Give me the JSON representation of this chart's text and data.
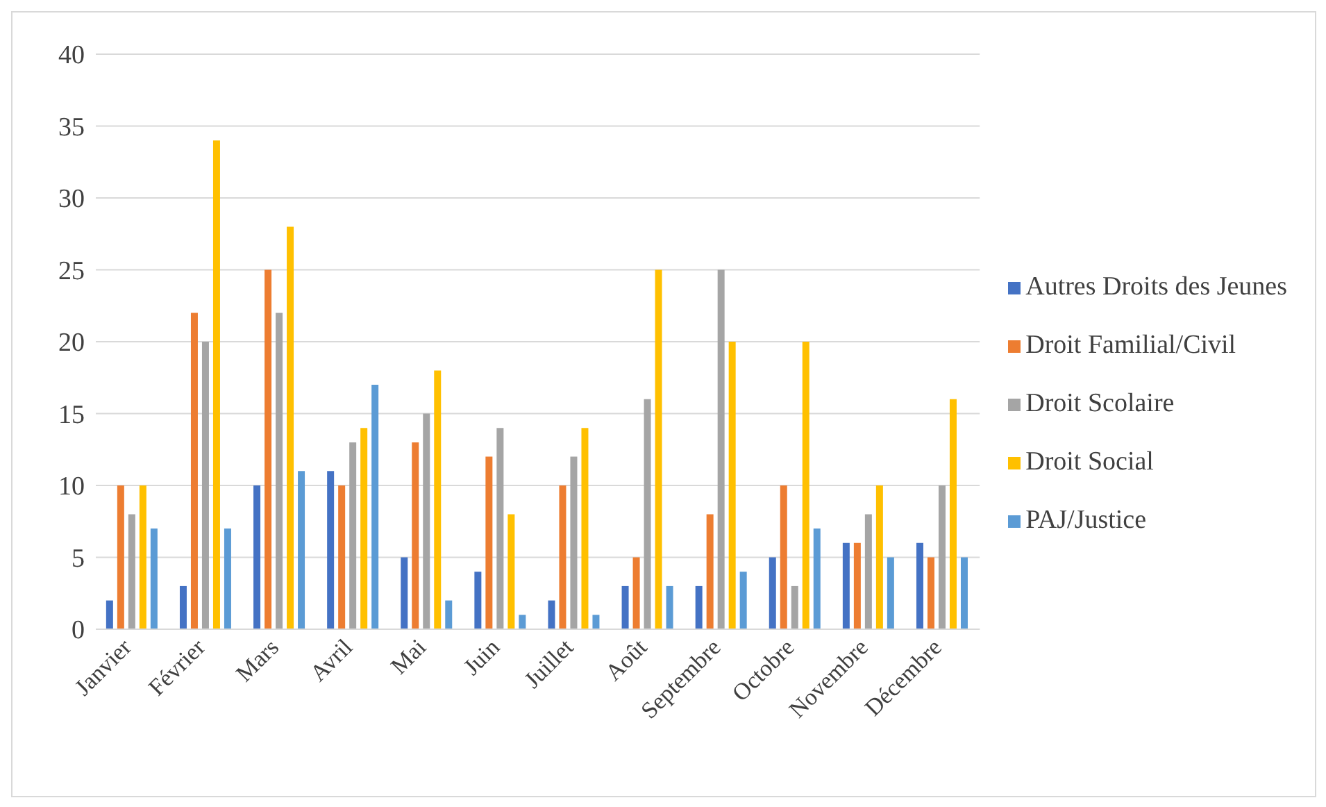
{
  "chart_data": {
    "type": "bar",
    "categories": [
      "Janvier",
      "Février",
      "Mars",
      "Avril",
      "Mai",
      "Juin",
      "Juillet",
      "Août",
      "Septembre",
      "Octobre",
      "Novembre",
      "Décembre"
    ],
    "series": [
      {
        "name": "Autres Droits des Jeunes",
        "color": "#4472c4",
        "values": [
          2,
          3,
          10,
          11,
          5,
          4,
          2,
          3,
          3,
          5,
          6,
          6
        ]
      },
      {
        "name": "Droit Familial/Civil",
        "color": "#ed7d31",
        "values": [
          10,
          22,
          25,
          10,
          13,
          12,
          10,
          5,
          8,
          10,
          6,
          5
        ]
      },
      {
        "name": "Droit Scolaire",
        "color": "#a5a5a5",
        "values": [
          8,
          20,
          22,
          13,
          15,
          14,
          12,
          16,
          25,
          3,
          8,
          10
        ]
      },
      {
        "name": "Droit Social",
        "color": "#ffc000",
        "values": [
          10,
          34,
          28,
          14,
          18,
          8,
          14,
          25,
          20,
          20,
          10,
          16
        ]
      },
      {
        "name": "PAJ/Justice",
        "color": "#5b9bd5",
        "values": [
          7,
          7,
          11,
          17,
          2,
          1,
          1,
          3,
          4,
          7,
          5,
          5
        ]
      }
    ],
    "ylim": [
      0,
      40
    ],
    "yticks": [
      0,
      5,
      10,
      15,
      20,
      25,
      30,
      35,
      40
    ],
    "grid": "y",
    "legend": "right"
  }
}
